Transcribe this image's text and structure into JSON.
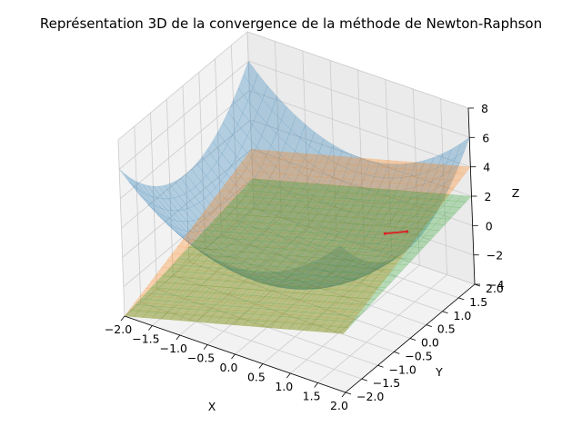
{
  "chart_data": {
    "type": "surface3d",
    "title": "Représentation 3D de la convergence de la méthode de Newton-Raphson",
    "xlabel": "X",
    "ylabel": "Y",
    "zlabel": "Z",
    "xlim": [
      -2.0,
      2.0
    ],
    "ylim": [
      -2.0,
      2.0
    ],
    "zlim": [
      -4,
      8
    ],
    "x_ticks": [
      "−2.0",
      "−1.5",
      "−1.0",
      "−0.5",
      "0.0",
      "0.5",
      "1.0",
      "1.5",
      "2.0"
    ],
    "y_ticks": [
      "−2.0",
      "−1.5",
      "−1.0",
      "−0.5",
      "0.0",
      "0.5",
      "1.0",
      "1.5",
      "2.0"
    ],
    "z_ticks": [
      "−4",
      "−2",
      "0",
      "2",
      "4",
      "6",
      "8"
    ],
    "grid": true,
    "surfaces": [
      {
        "equation": "x^2 + y^2 - 2",
        "color": "#1f77b4",
        "alpha": 0.3
      },
      {
        "equation": "x + y",
        "color": "#ff7f0e",
        "alpha": 0.3
      },
      {
        "equation": "x + y/2 - 1",
        "color": "#2ca02c",
        "alpha": 0.3
      }
    ],
    "path": {
      "color": "#d62728",
      "points": [
        [
          1.0,
          1.0,
          0.0
        ],
        [
          1.25,
          1.25,
          0.0
        ]
      ]
    }
  }
}
